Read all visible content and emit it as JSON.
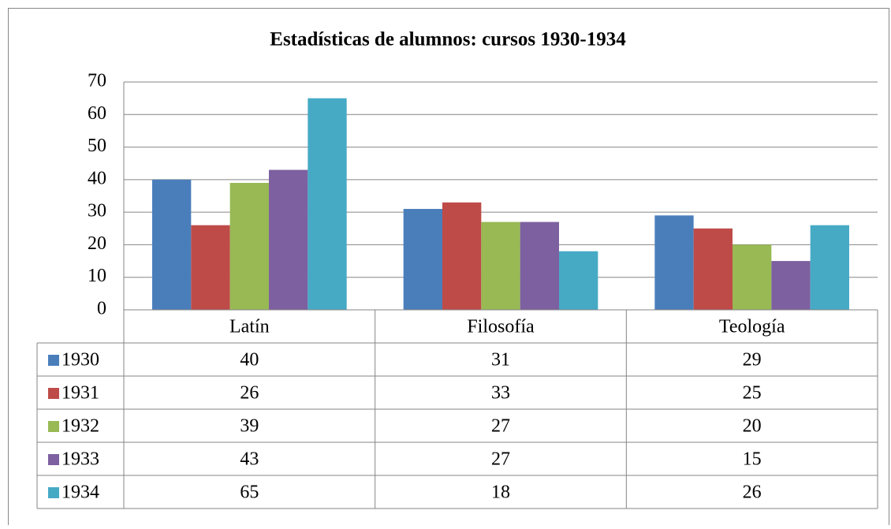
{
  "chart_data": {
    "type": "bar",
    "title": "Estadísticas de alumnos: cursos 1930-1934",
    "categories": [
      "Latín",
      "Filosofía",
      "Teología"
    ],
    "series": [
      {
        "name": "1930",
        "color": "#4a7ebb",
        "values": [
          40,
          31,
          29
        ]
      },
      {
        "name": "1931",
        "color": "#be4b48",
        "values": [
          26,
          33,
          25
        ]
      },
      {
        "name": "1932",
        "color": "#98b954",
        "values": [
          39,
          27,
          20
        ]
      },
      {
        "name": "1933",
        "color": "#7d60a0",
        "values": [
          43,
          27,
          15
        ]
      },
      {
        "name": "1934",
        "color": "#46aac5",
        "values": [
          65,
          18,
          26
        ]
      }
    ],
    "ylim": [
      0,
      70
    ],
    "yticks": [
      0,
      10,
      20,
      30,
      40,
      50,
      60,
      70
    ],
    "grid": true
  }
}
